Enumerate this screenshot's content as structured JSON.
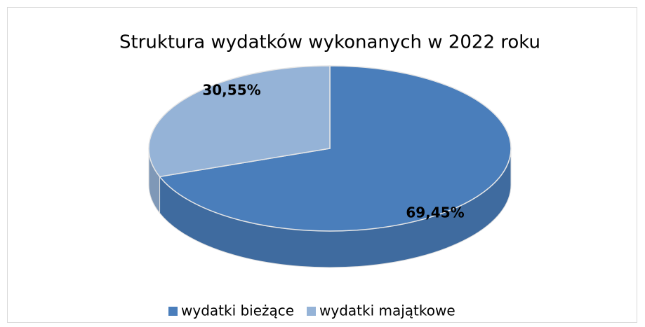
{
  "chart_data": {
    "type": "pie",
    "title": "Struktura wydatków wykonanych w 2022 roku",
    "categories": [
      "wydatki bieżące",
      "wydatki majątkowe"
    ],
    "values": [
      69.45,
      30.55
    ],
    "value_labels": [
      "69,45%",
      "30,55%"
    ],
    "colors": [
      "#4a7ebb",
      "#95b3d7"
    ],
    "legend": "bottom"
  }
}
